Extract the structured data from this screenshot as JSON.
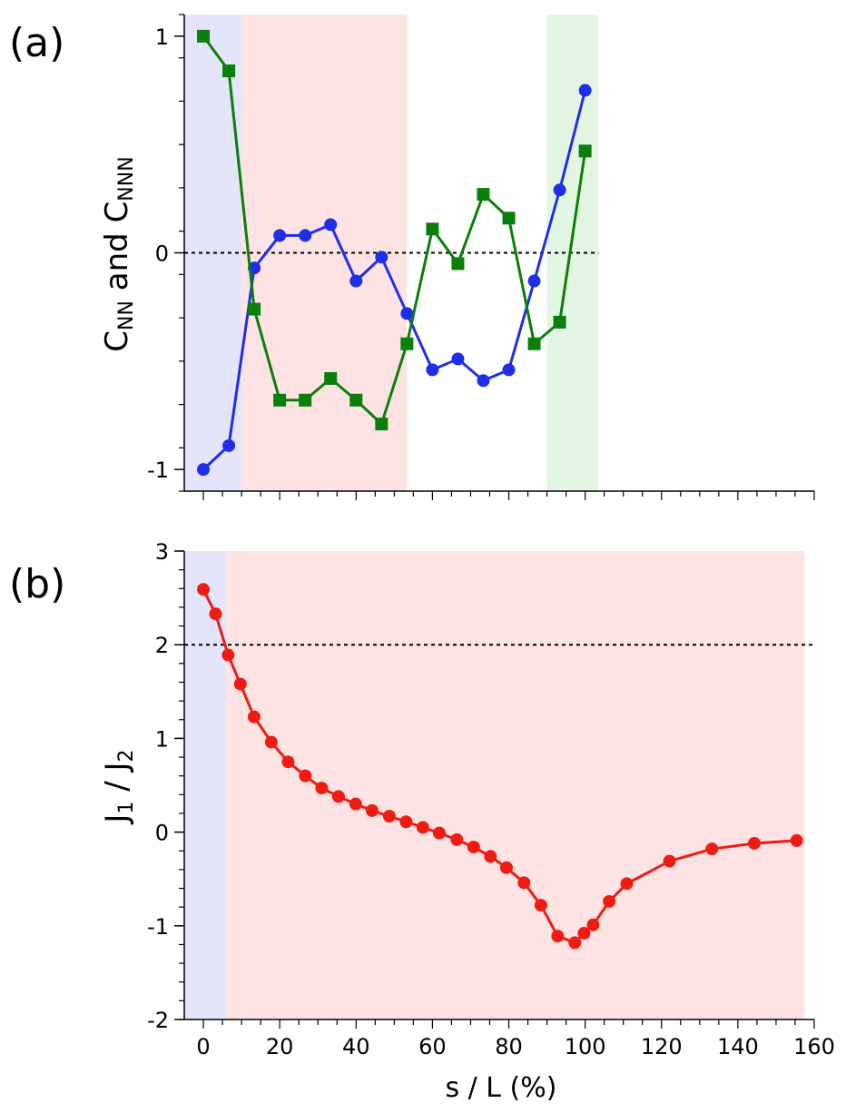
{
  "chart_data": [
    {
      "panel_label": "(a)",
      "type": "line",
      "ylabel": {
        "main": "C",
        "sub1": "NN",
        "mid": " and C",
        "sub2": "NNN"
      },
      "xlabel": "",
      "xlim": [
        -5,
        160
      ],
      "ylim": [
        -1.1,
        1.1
      ],
      "yticks": [
        1,
        0,
        -1
      ],
      "ytick_labels": [
        "1",
        "0",
        "-1"
      ],
      "reference_line_y": 0,
      "shaded_regions": [
        {
          "from": -5,
          "to": 10,
          "color": "#e4e4fb"
        },
        {
          "from": 10,
          "to": 53.3,
          "color": "#fde3e3"
        },
        {
          "from": 90,
          "to": 103.5,
          "color": "#e3f6e3"
        }
      ],
      "series": [
        {
          "name": "C_NN",
          "color": "#1f2fe8",
          "marker": "circle",
          "x": [
            0,
            6.67,
            13.33,
            20,
            26.67,
            33.33,
            40,
            46.67,
            53.33,
            60,
            66.67,
            73.33,
            80,
            86.67,
            93.33,
            100
          ],
          "values": [
            -1.0,
            -0.89,
            -0.07,
            0.08,
            0.08,
            0.13,
            -0.13,
            -0.02,
            -0.28,
            -0.54,
            -0.49,
            -0.59,
            -0.54,
            -0.13,
            0.29,
            0.75
          ]
        },
        {
          "name": "C_NNN",
          "color": "#0b7f0b",
          "marker": "square",
          "x": [
            0,
            6.67,
            13.33,
            20,
            26.67,
            33.33,
            40,
            46.67,
            53.33,
            60,
            66.67,
            73.33,
            80,
            86.67,
            93.33,
            100
          ],
          "values": [
            1.0,
            0.84,
            -0.26,
            -0.68,
            -0.68,
            -0.58,
            -0.68,
            -0.79,
            -0.42,
            0.11,
            -0.05,
            0.27,
            0.16,
            -0.42,
            -0.32,
            0.47
          ]
        }
      ]
    },
    {
      "panel_label": "(b)",
      "type": "line",
      "ylabel": {
        "main": "J",
        "sub1": "1",
        "mid": " / J",
        "sub2": "2"
      },
      "xlabel": "s / L (%)",
      "xlim": [
        -5,
        160
      ],
      "ylim": [
        -2,
        3
      ],
      "xticks": [
        0,
        20,
        40,
        60,
        80,
        100,
        120,
        140,
        160
      ],
      "xtick_labels": [
        "0",
        "20",
        "40",
        "60",
        "80",
        "100",
        "120",
        "140",
        "160"
      ],
      "yticks": [
        3,
        2,
        1,
        0,
        -1,
        -2
      ],
      "ytick_labels": [
        "3",
        "2",
        "1",
        "0",
        "-1",
        "-2"
      ],
      "reference_line_y": 2,
      "shaded_regions": [
        {
          "from": -5,
          "to": 6,
          "color": "#e4e4fb"
        },
        {
          "from": 6,
          "to": 157.5,
          "color": "#fde3e3"
        }
      ],
      "series": [
        {
          "name": "J1/J2",
          "color": "#ee1c12",
          "marker": "circle",
          "x": [
            0,
            3.2,
            6.5,
            9.7,
            13.3,
            17.8,
            22.2,
            26.7,
            31.0,
            35.4,
            39.9,
            44.2,
            48.7,
            53.1,
            57.5,
            61.8,
            66.4,
            70.8,
            75.2,
            79.4,
            84.0,
            88.4,
            92.8,
            97.3,
            99.7,
            102.1,
            106.3,
            110.9,
            122.1,
            133.2,
            144.3,
            155.4
          ],
          "values": [
            2.59,
            2.33,
            1.89,
            1.58,
            1.23,
            0.96,
            0.75,
            0.6,
            0.47,
            0.38,
            0.3,
            0.23,
            0.17,
            0.11,
            0.05,
            -0.01,
            -0.08,
            -0.16,
            -0.26,
            -0.38,
            -0.54,
            -0.78,
            -1.11,
            -1.18,
            -1.08,
            -0.99,
            -0.74,
            -0.55,
            -0.31,
            -0.18,
            -0.12,
            -0.09
          ]
        }
      ]
    }
  ]
}
